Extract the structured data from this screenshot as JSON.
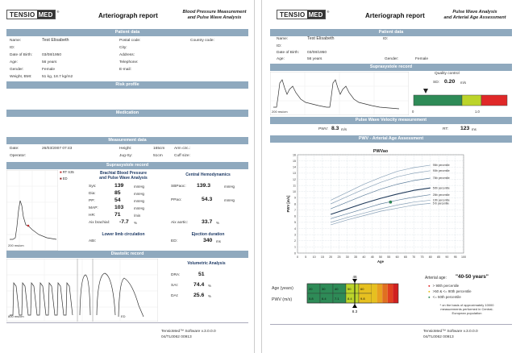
{
  "page1": {
    "logo_a": "TENSIO",
    "logo_b": "MED",
    "logo_reg": "®",
    "report_title": "Arteriograph report",
    "report_sub": [
      "Blood Pressure Measurement",
      "and Pulse Wave Analysis"
    ],
    "patient_bar": "Patient data",
    "patient": {
      "name_l": "Name:",
      "name_v": "Test Elisabeth",
      "id_l": "ID:",
      "dob_l": "Date of Birth:",
      "dob_v": "03/08/1950",
      "age_l": "Age:",
      "age_v": "56 years",
      "gender_l": "Gender:",
      "gender_v": "Female",
      "weight_l": "Weight, BMI:",
      "weight_v": "51 kg, 18.7 kg/m2",
      "postal_l": "Postal code:",
      "city_l": "City:",
      "address_l": "Address:",
      "phone_l": "Telephone:",
      "email_l": "E-mail:",
      "country_l": "Country code:"
    },
    "risk_bar": "Risk profile",
    "medication_bar": "Medication",
    "measurement_bar": "Measurement data",
    "measurement": {
      "date_l": "Date:",
      "date_v": "26/03/2007   07:43",
      "operator_l": "Operator:",
      "height_l": "Height:",
      "height_v": "165cm",
      "jug_l": "Jug-Sy:",
      "jug_v": "51cm",
      "arm_l": "Arm circ.:",
      "cuff_l": "Cuff size:"
    },
    "supra_bar": "Suprasystole record",
    "supra_legend": [
      "RT  S35",
      "ED"
    ],
    "supra_scale": "200 ms/cm",
    "brachial_head": [
      "Brachial Blood Pressure",
      "and Pulse Wave Analysis"
    ],
    "central_head": "Central Hemodynamics",
    "brachial": [
      {
        "l": "Sys:",
        "v": "139",
        "u": "mmHg"
      },
      {
        "l": "Dia:",
        "v": "85",
        "u": "mmHg"
      },
      {
        "l": "PP:",
        "v": "54",
        "u": "mmHg"
      },
      {
        "l": "MAP:",
        "v": "103",
        "u": "mmHg"
      },
      {
        "l": "HR:",
        "v": "71",
        "u": "/min"
      }
    ],
    "central": [
      {
        "l": "SBPaoc:",
        "v": "139.3",
        "u": "mmHg"
      },
      {
        "l": "PPao:",
        "v": "54.3",
        "u": "mmHg"
      }
    ],
    "aix_brachial_l": "Aix brachial:",
    "aix_brachial_v": "-7.7",
    "aix_brachial_u": "%",
    "aix_aortic_l": "Aix aortic:",
    "aix_aortic_v": "33.7",
    "aix_aortic_u": "%",
    "lower_head": "Lower limb circulation",
    "ejection_head": "Ejection duration",
    "abi_l": "ABI:",
    "ed_l": "ED:",
    "ed_v": "340",
    "ed_u": "ms",
    "dia_bar": "Diastolic record",
    "dia_scale": "800 ms/cm",
    "dia_ed_label": "ED",
    "vol_head": "Volumetric Analysis",
    "vol": [
      {
        "l": "DRA:",
        "v": "51",
        "u": ""
      },
      {
        "l": "SAI:",
        "v": "74.4",
        "u": "%"
      },
      {
        "l": "DAI:",
        "v": "25.6",
        "u": "%"
      }
    ],
    "footer": [
      "TensioMed™ Software   v.3.0.0.0",
      "04/TL0062   00913"
    ]
  },
  "page2": {
    "logo_a": "TENSIO",
    "logo_b": "MED",
    "logo_reg": "®",
    "report_title": "Arteriograph report",
    "report_sub": [
      "Pulse Wave Analysis",
      "and Arterial Age Assessment"
    ],
    "patient_bar": "Patient data",
    "patient": {
      "name_l": "Name:",
      "name_v": "Test Elisabeth",
      "id_l": "ID:",
      "dob_l": "Date of Birth:",
      "dob_v": "03/08/1950",
      "age_l": "Age:",
      "age_v": "56 years",
      "gender_l": "Gender:",
      "gender_v": "Female",
      "id2_l": "ID:"
    },
    "supra_bar": "Suprasystole record",
    "supra_scale": "200 ms/cm",
    "quality_l": "Quality control",
    "sd_l": "SD:",
    "sd_v": "0.20",
    "sd_u": "m/s",
    "quality_ticks": [
      "0",
      "1.0"
    ],
    "quality_colors": [
      "#2e8b57",
      "#bcd42a",
      "#e02828"
    ],
    "pwv_bar": "Pulse Wave Velocity measurement",
    "pwv_l": "PWV:",
    "pwv_v": "8.3",
    "pwv_u": "m/s",
    "rt_l": "RT:",
    "rt_v": "123",
    "rt_u": "ms",
    "age_bar": "PWV - Arterial Age Assessment",
    "chart_title": "PWVao",
    "percentiles": [
      "95th percentile",
      "90th percentile",
      "75th percentile",
      "50th percentile",
      "25th percentile",
      "10th percentile",
      "5 th percentile"
    ],
    "scale": {
      "age_label": "Age (years)",
      "pwv_label": "PWV (m/s)",
      "age_marker": "46",
      "pwv_marker": "8.3",
      "age_cells": [
        "20",
        "30",
        "40",
        "50",
        "60"
      ],
      "pwv_cells": [
        "5.8",
        "6.4",
        "7.1",
        "8.4",
        "9.8"
      ]
    },
    "arterial_age_l": "Arterial age:",
    "arterial_age_v": "\"40-50 years\"",
    "legend": [
      {
        "c": "#e02828",
        "t": "> 90th percentile"
      },
      {
        "c": "#e6c020",
        "t": ">50 & <= 90th percentile"
      },
      {
        "c": "#2e8b57",
        "t": "<= 50th percentile"
      }
    ],
    "footnote": [
      "* on the basis of approximately 10000",
      "measurements performed in Central-",
      "European population"
    ],
    "footer": [
      "TensioMed™ Software   v.3.0.0.0",
      "04/TL0062   00913"
    ]
  },
  "chart_data": {
    "type": "line",
    "title": "PWVao",
    "xlabel": "Age",
    "ylabel": "PWV [m/s]",
    "xlim": [
      0,
      100
    ],
    "ylim": [
      0,
      16
    ],
    "x": [
      20,
      30,
      40,
      50,
      60,
      70,
      80
    ],
    "series": [
      {
        "name": "95th percentile",
        "values": [
          8.6,
          9.9,
          11.2,
          12.3,
          13.3,
          13.9,
          14.3
        ]
      },
      {
        "name": "90th percentile",
        "values": [
          8.0,
          9.2,
          10.4,
          11.5,
          12.4,
          13.0,
          13.4
        ]
      },
      {
        "name": "75th percentile",
        "values": [
          7.2,
          8.3,
          9.4,
          10.4,
          11.2,
          11.8,
          12.2
        ]
      },
      {
        "name": "50th percentile",
        "values": [
          6.3,
          7.2,
          8.1,
          8.9,
          9.6,
          10.2,
          10.6
        ]
      },
      {
        "name": "25th percentile",
        "values": [
          5.6,
          6.4,
          7.2,
          8.0,
          8.6,
          9.1,
          9.5
        ]
      },
      {
        "name": "10th percentile",
        "values": [
          5.0,
          5.8,
          6.5,
          7.2,
          7.8,
          8.3,
          8.6
        ]
      },
      {
        "name": "5 th percentile",
        "values": [
          4.6,
          5.4,
          6.1,
          6.8,
          7.3,
          7.8,
          8.1
        ]
      }
    ],
    "points": [
      {
        "x": 56,
        "y": 8.3
      }
    ],
    "xticks": [
      0,
      5,
      10,
      15,
      20,
      25,
      30,
      35,
      40,
      45,
      50,
      55,
      60,
      65,
      70,
      75,
      80,
      85,
      90,
      95,
      100
    ],
    "yticks": [
      0,
      1,
      2,
      3,
      4,
      5,
      6,
      7,
      8,
      9,
      10,
      11,
      12,
      13,
      14,
      15,
      16
    ],
    "grid": true
  }
}
